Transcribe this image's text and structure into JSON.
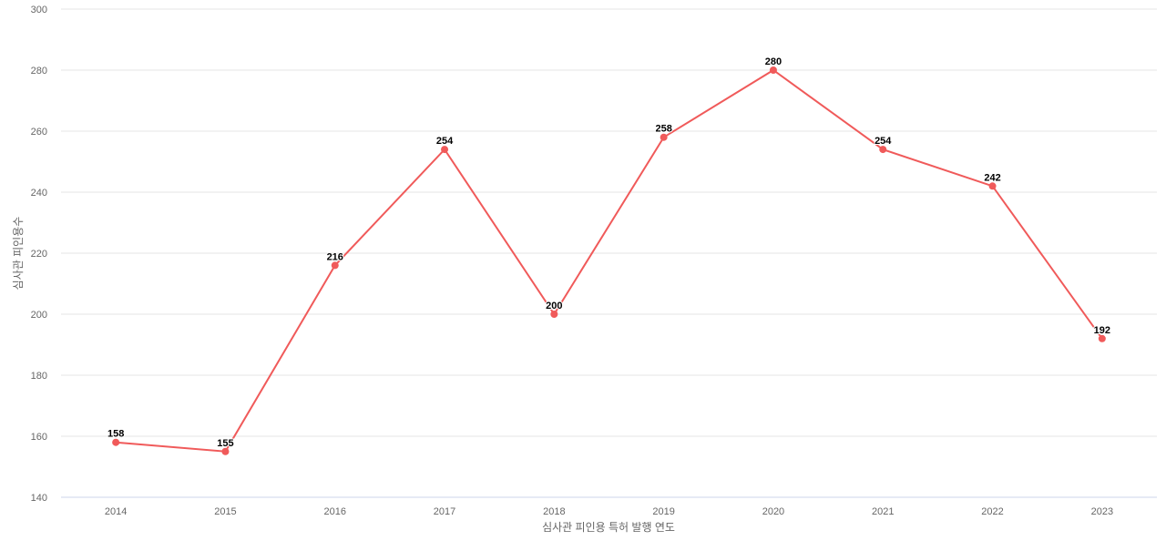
{
  "chart_data": {
    "type": "line",
    "title": "",
    "xlabel": "심사관 피인용 특허 발행 연도",
    "ylabel": "심사관 피인용수",
    "categories": [
      "2014",
      "2015",
      "2016",
      "2017",
      "2018",
      "2019",
      "2020",
      "2021",
      "2022",
      "2023"
    ],
    "series": [
      {
        "values": [
          158,
          155,
          216,
          254,
          200,
          258,
          280,
          254,
          242,
          192
        ],
        "color": "#f05a5a"
      }
    ],
    "ylim": [
      140,
      300
    ],
    "yticks": [
      140,
      160,
      180,
      200,
      220,
      240,
      260,
      280,
      300
    ],
    "grid": true,
    "data_labels": true
  }
}
